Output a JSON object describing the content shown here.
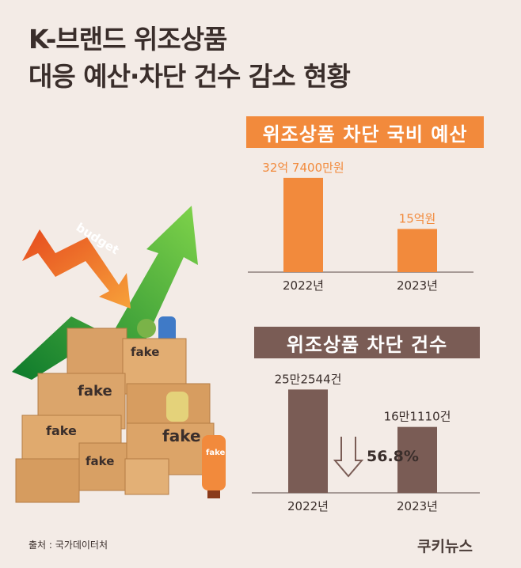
{
  "title": {
    "line1": "K-브랜드 위조상품",
    "line2": "대응 예산·차단 건수 감소 현황"
  },
  "chart_data": [
    {
      "type": "bar",
      "title": "위조상품 차단 국비 예산",
      "categories": [
        "2022년",
        "2023년"
      ],
      "values": [
        32.74,
        15
      ],
      "value_labels": [
        "32억 7400만원",
        "15억원"
      ],
      "unit": "억원",
      "ylim": [
        0,
        36
      ],
      "color": "#f28a3c"
    },
    {
      "type": "bar",
      "title": "위조상품 차단 건수",
      "categories": [
        "2022년",
        "2023년"
      ],
      "values": [
        252544,
        161110
      ],
      "value_labels": [
        "25만2544건",
        "16만1110건"
      ],
      "unit": "건",
      "ylim": [
        0,
        290000
      ],
      "color": "#7a5c55",
      "annotation": "56.8%"
    }
  ],
  "illustration": {
    "arrow_text": "budget",
    "box_labels": [
      "fake",
      "fake",
      "fake",
      "fake",
      "fake",
      "fake"
    ]
  },
  "footer": {
    "source": "출처 : 국가데이터처",
    "logo": "쿠키뉴스"
  },
  "colors": {
    "background": "#f3ebe6",
    "accent_orange": "#f28a3c",
    "accent_brown": "#7a5c55",
    "text": "#3a2e2b"
  }
}
